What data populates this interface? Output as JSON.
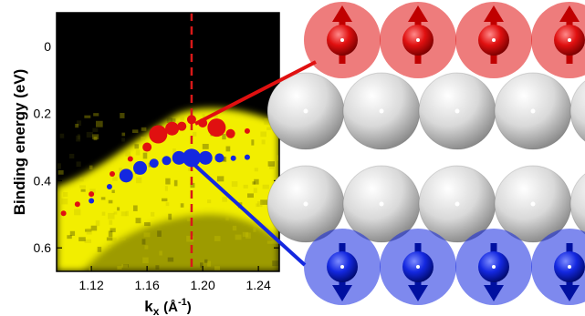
{
  "colors": {
    "spin_up": "#e01010",
    "spin_down": "#1428e0",
    "lattice_atom": "#d9d9d9",
    "map_background": "#000000",
    "map_intensity": "#f2ee00",
    "cut_line": "#d81818"
  },
  "chart_data": {
    "type": "heatmap",
    "title": "",
    "xlabel_base": "k",
    "xlabel_sub": "x",
    "xlabel_unit": "(Å",
    "xlabel_exp": "-1",
    "xlabel_close": ")",
    "ylabel": "Binding energy (eV)",
    "xlim": [
      1.095,
      1.255
    ],
    "ylim": [
      -0.1,
      0.67
    ],
    "y_inverted": true,
    "xticks": [
      1.12,
      1.16,
      1.2,
      1.24
    ],
    "xtick_labels": [
      "1.12",
      "1.16",
      "1.20",
      "1.24"
    ],
    "yticks": [
      0,
      0.2,
      0.4,
      0.6
    ],
    "ytick_labels": [
      "0",
      "0.2",
      "0.4",
      "0.6"
    ],
    "vertical_cut_x": 1.192,
    "grid": false,
    "legend": "none",
    "series": [
      {
        "color": "#e01010",
        "x": [
          1.1,
          1.11,
          1.12,
          1.135,
          1.148,
          1.16,
          1.168,
          1.178,
          1.185,
          1.192,
          1.2,
          1.21,
          1.22,
          1.232
        ],
        "y": [
          0.497,
          0.47,
          0.44,
          0.38,
          0.335,
          0.3,
          0.262,
          0.245,
          0.238,
          0.218,
          0.228,
          0.242,
          0.26,
          0.252
        ],
        "size": [
          1,
          1,
          1,
          1,
          1,
          2,
          4,
          3,
          2,
          2,
          2,
          4,
          2,
          1
        ]
      },
      {
        "color": "#1428e0",
        "x": [
          1.12,
          1.133,
          1.145,
          1.155,
          1.165,
          1.174,
          1.183,
          1.192,
          1.202,
          1.212,
          1.222,
          1.232
        ],
        "y": [
          0.46,
          0.418,
          0.385,
          0.362,
          0.348,
          0.34,
          0.332,
          0.332,
          0.332,
          0.332,
          0.333,
          0.33
        ],
        "size": [
          1,
          1,
          3,
          3,
          2,
          2,
          3,
          4,
          3,
          2,
          1,
          1
        ]
      }
    ]
  }
}
